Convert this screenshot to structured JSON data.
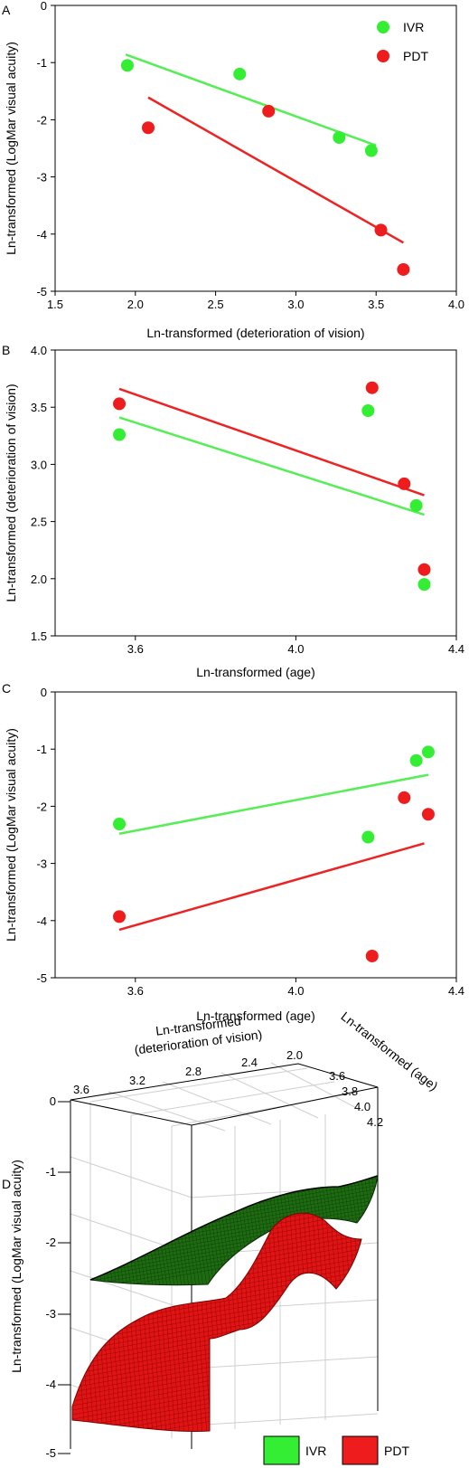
{
  "legend": {
    "ivr": "IVR",
    "pdt": "PDT"
  },
  "colors": {
    "ivr": "#33ee33",
    "pdt": "#ee1c1c",
    "ivr_line": "#55ee55",
    "pdt_line": "#ee2222",
    "ivr_surface": "#1f6b12",
    "pdt_surface": "#e01414"
  },
  "chart_data": [
    {
      "panel": "A",
      "type": "scatter",
      "xlabel": "Ln-transformed (deterioration of vision)",
      "ylabel": "Ln-transformed (LogMar visual acuity)",
      "xlim": [
        1.5,
        4.0
      ],
      "ylim": [
        -5,
        0
      ],
      "xticks": [
        "1.5",
        "2.0",
        "2.5",
        "3.0",
        "3.5",
        "4.0"
      ],
      "yticks": [
        "0",
        "-1",
        "-2",
        "-3",
        "-4",
        "-5"
      ],
      "legend_position": "top-right",
      "series": [
        {
          "name": "IVR",
          "points": [
            [
              1.95,
              -1.05
            ],
            [
              2.65,
              -1.2
            ],
            [
              3.27,
              -2.31
            ],
            [
              3.47,
              -2.54
            ]
          ],
          "fit": [
            [
              1.94,
              -0.86
            ],
            [
              3.5,
              -2.45
            ]
          ]
        },
        {
          "name": "PDT",
          "points": [
            [
              2.08,
              -2.14
            ],
            [
              2.83,
              -1.85
            ],
            [
              3.53,
              -3.93
            ],
            [
              3.67,
              -4.62
            ]
          ],
          "fit": [
            [
              2.08,
              -1.61
            ],
            [
              3.67,
              -4.15
            ]
          ]
        }
      ]
    },
    {
      "panel": "B",
      "type": "scatter",
      "xlabel": "Ln-transformed (age)",
      "ylabel": "Ln-transformed (deterioration of vision)",
      "xlim": [
        3.4,
        4.4
      ],
      "ylim": [
        1.5,
        4.0
      ],
      "xticks": [
        "3.6",
        "4.0",
        "4.4"
      ],
      "yticks": [
        "4.0",
        "3.5",
        "3.0",
        "2.5",
        "2.0",
        "1.5"
      ],
      "series": [
        {
          "name": "IVR",
          "points": [
            [
              3.56,
              3.26
            ],
            [
              4.18,
              3.47
            ],
            [
              4.3,
              2.64
            ],
            [
              4.32,
              1.95
            ]
          ],
          "fit": [
            [
              3.56,
              3.41
            ],
            [
              4.32,
              2.56
            ]
          ]
        },
        {
          "name": "PDT",
          "points": [
            [
              3.56,
              3.53
            ],
            [
              4.19,
              3.67
            ],
            [
              4.27,
              2.83
            ],
            [
              4.32,
              2.08
            ]
          ],
          "fit": [
            [
              3.56,
              3.66
            ],
            [
              4.32,
              2.73
            ]
          ]
        }
      ]
    },
    {
      "panel": "C",
      "type": "scatter",
      "xlabel": "Ln-transformed (age)",
      "ylabel": "Ln-transformed (LogMar visual acuity)",
      "xlim": [
        3.4,
        4.4
      ],
      "ylim": [
        -5,
        0
      ],
      "xticks": [
        "3.6",
        "4.0",
        "4.4"
      ],
      "yticks": [
        "0",
        "-1",
        "-2",
        "-3",
        "-4",
        "-5"
      ],
      "series": [
        {
          "name": "IVR",
          "points": [
            [
              3.56,
              -2.31
            ],
            [
              4.18,
              -2.54
            ],
            [
              4.3,
              -1.2
            ],
            [
              4.33,
              -1.05
            ]
          ],
          "fit": [
            [
              3.56,
              -2.48
            ],
            [
              4.33,
              -1.45
            ]
          ]
        },
        {
          "name": "PDT",
          "points": [
            [
              3.56,
              -3.93
            ],
            [
              4.19,
              -4.62
            ],
            [
              4.27,
              -1.85
            ],
            [
              4.33,
              -2.14
            ]
          ],
          "fit": [
            [
              3.56,
              -4.16
            ],
            [
              4.32,
              -2.65
            ]
          ]
        }
      ]
    },
    {
      "panel": "D",
      "type": "surface",
      "xlabel_line1": "Ln-transformed",
      "xlabel_line2": "(deterioration of vision)",
      "ylabel": "Ln-transformed (LogMar visual acuity)",
      "zlabel": "Ln-transformed (age)",
      "xticks": [
        "3.6",
        "3.2",
        "2.8",
        "2.4",
        "2.0"
      ],
      "yticks": [
        "0",
        "-1",
        "-2",
        "-3",
        "-4",
        "-5"
      ],
      "zticks": [
        "3.6",
        "3.8",
        "4.0",
        "4.2"
      ],
      "series": [
        {
          "name": "IVR"
        },
        {
          "name": "PDT"
        }
      ]
    }
  ]
}
